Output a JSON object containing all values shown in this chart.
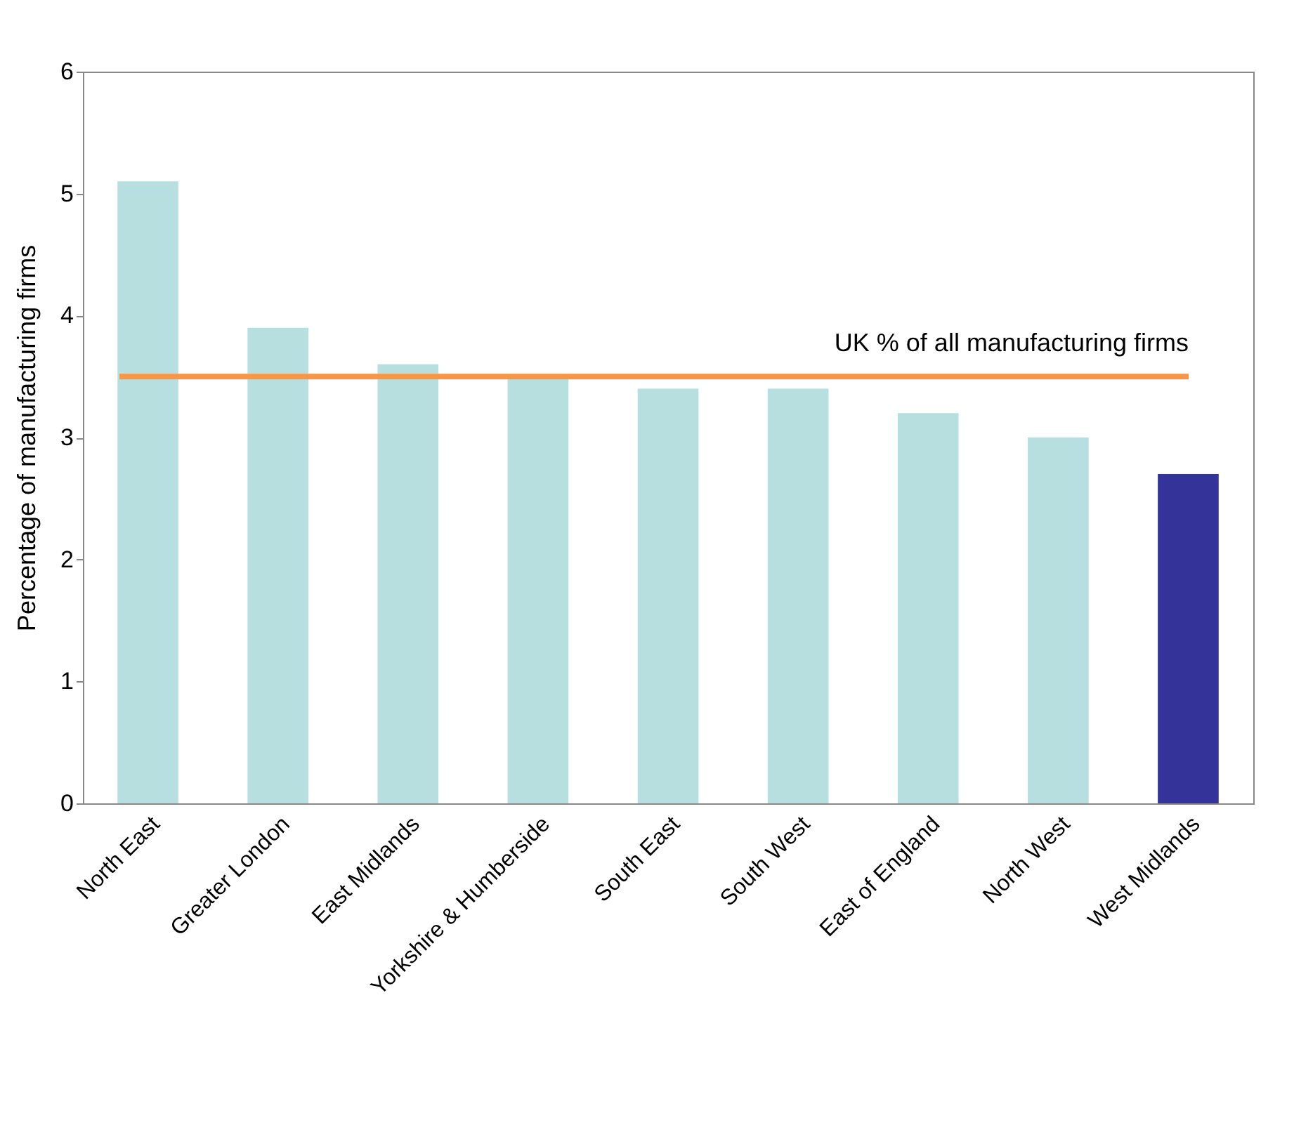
{
  "chart_data": {
    "type": "bar",
    "ylabel": "Percentage of manufacturing firms",
    "categories": [
      "North East",
      "Greater London",
      "East Midlands",
      "Yorkshire & Humberside",
      "South East",
      "South West",
      "East of England",
      "North West",
      "West Midlands"
    ],
    "values": [
      5.1,
      3.9,
      3.6,
      3.5,
      3.4,
      3.4,
      3.2,
      3.0,
      2.7
    ],
    "colors": [
      "#b7dfe0",
      "#b7dfe0",
      "#b7dfe0",
      "#b7dfe0",
      "#b7dfe0",
      "#b7dfe0",
      "#b7dfe0",
      "#b7dfe0",
      "#333399"
    ],
    "ylim": [
      0,
      6
    ],
    "yticks": [
      0,
      1,
      2,
      3,
      4,
      5,
      6
    ],
    "grid": false,
    "ref_lines": [
      {
        "axis": "y",
        "value": 3.5,
        "label": "UK % of all manufacturing firms",
        "color": "#f79646"
      }
    ]
  }
}
